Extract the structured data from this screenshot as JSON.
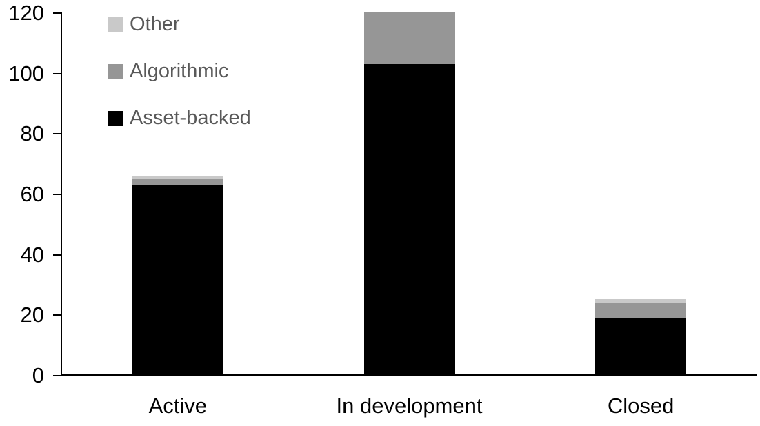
{
  "chart_data": {
    "type": "bar",
    "stacked": true,
    "title": "",
    "xlabel": "",
    "ylabel": "",
    "categories": [
      "Active",
      "In development",
      "Closed"
    ],
    "series": [
      {
        "name": "Asset-backed",
        "color": "#000000",
        "values": [
          63,
          103,
          19
        ]
      },
      {
        "name": "Algorithmic",
        "color": "#969696",
        "values": [
          2,
          17,
          5
        ]
      },
      {
        "name": "Other",
        "color": "#c9c9c9",
        "values": [
          1,
          0,
          1
        ]
      }
    ],
    "stack_totals": [
      66,
      120,
      25
    ],
    "ylim": [
      0,
      120
    ],
    "ytick_step": 20,
    "ytick_labels": [
      "0",
      "20",
      "40",
      "60",
      "80",
      "100",
      "120"
    ],
    "grid": false,
    "legend": {
      "position": "top-left",
      "order": [
        "Other",
        "Algorithmic",
        "Asset-backed"
      ],
      "text_color": "#595959"
    },
    "axis_color": "#000000",
    "background_color": "#ffffff"
  }
}
